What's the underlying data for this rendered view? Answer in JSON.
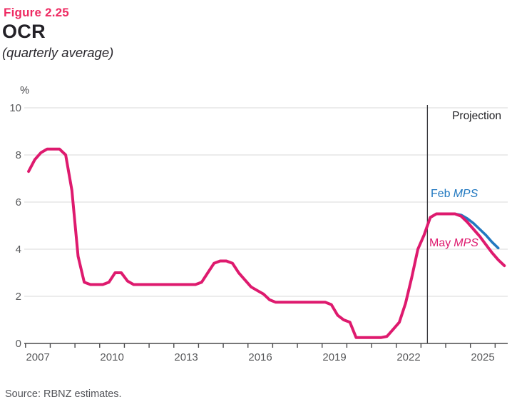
{
  "header": {
    "figure_label": "Figure 2.25",
    "title": "OCR",
    "subtitle": "(quarterly average)"
  },
  "footer": {
    "source": "Source: RBNZ estimates."
  },
  "colors": {
    "pink": "#de1a6e",
    "figure_label_pink": "#ee2a62",
    "blue": "#2178c0",
    "dark_text": "#232127",
    "annotation_dark": "#1d1d21",
    "axis_label_gray": "#58595b",
    "gridline_gray": "#d8d8da",
    "axis_line": "#4a4a4c",
    "projection_line": "#3a3a3e",
    "background": "#ffffff"
  },
  "chart_data": {
    "type": "line",
    "title": "OCR",
    "subtitle": "(quarterly average)",
    "unit_label": "%",
    "ylim": [
      0,
      10
    ],
    "y_ticks": [
      0,
      2,
      4,
      6,
      8,
      10
    ],
    "x_tick_years": [
      2007,
      2008,
      2009,
      2010,
      2011,
      2012,
      2013,
      2014,
      2015,
      2016,
      2017,
      2018,
      2019,
      2020,
      2021,
      2022,
      2023,
      2024,
      2025,
      2026
    ],
    "x_label_years": [
      2007,
      2010,
      2013,
      2016,
      2019,
      2022,
      2025
    ],
    "x_tick_labels": [
      "2007",
      "2010",
      "2013",
      "2016",
      "2019",
      "2022",
      "2025"
    ],
    "xlim": [
      2007.0,
      2026.6
    ],
    "projection_x": 2023.26,
    "grid": "horizontal-only",
    "legend_position": "inline-annotations",
    "annotations": {
      "projection": "Projection",
      "feb_word": "Feb",
      "may_word": "May",
      "mps": "MPS"
    },
    "series": [
      {
        "name": "Feb MPS",
        "color_key": "blue",
        "x_start_year": 2023.125,
        "x_step_years": 0.25,
        "values": [
          4.6,
          5.35,
          5.5,
          5.5,
          5.5,
          5.5,
          5.45,
          5.3,
          5.1,
          4.85,
          4.6,
          4.3,
          4.05
        ]
      },
      {
        "name": "May MPS",
        "color_key": "pink",
        "x_start_year": 2007.125,
        "x_step_years": 0.25,
        "values": [
          7.3,
          7.8,
          8.1,
          8.25,
          8.25,
          8.25,
          8.0,
          6.5,
          3.7,
          2.6,
          2.5,
          2.5,
          2.5,
          2.6,
          3.0,
          3.0,
          2.65,
          2.5,
          2.5,
          2.5,
          2.5,
          2.5,
          2.5,
          2.5,
          2.5,
          2.5,
          2.5,
          2.5,
          2.6,
          3.0,
          3.4,
          3.5,
          3.5,
          3.4,
          3.0,
          2.7,
          2.4,
          2.25,
          2.1,
          1.85,
          1.75,
          1.75,
          1.75,
          1.75,
          1.75,
          1.75,
          1.75,
          1.75,
          1.75,
          1.65,
          1.2,
          1.0,
          0.9,
          0.25,
          0.25,
          0.25,
          0.25,
          0.25,
          0.3,
          0.6,
          0.9,
          1.7,
          2.8,
          4.0,
          4.6,
          5.35,
          5.5,
          5.5,
          5.5,
          5.5,
          5.4,
          5.15,
          4.85,
          4.55,
          4.2,
          3.85,
          3.55,
          3.3
        ]
      }
    ]
  }
}
